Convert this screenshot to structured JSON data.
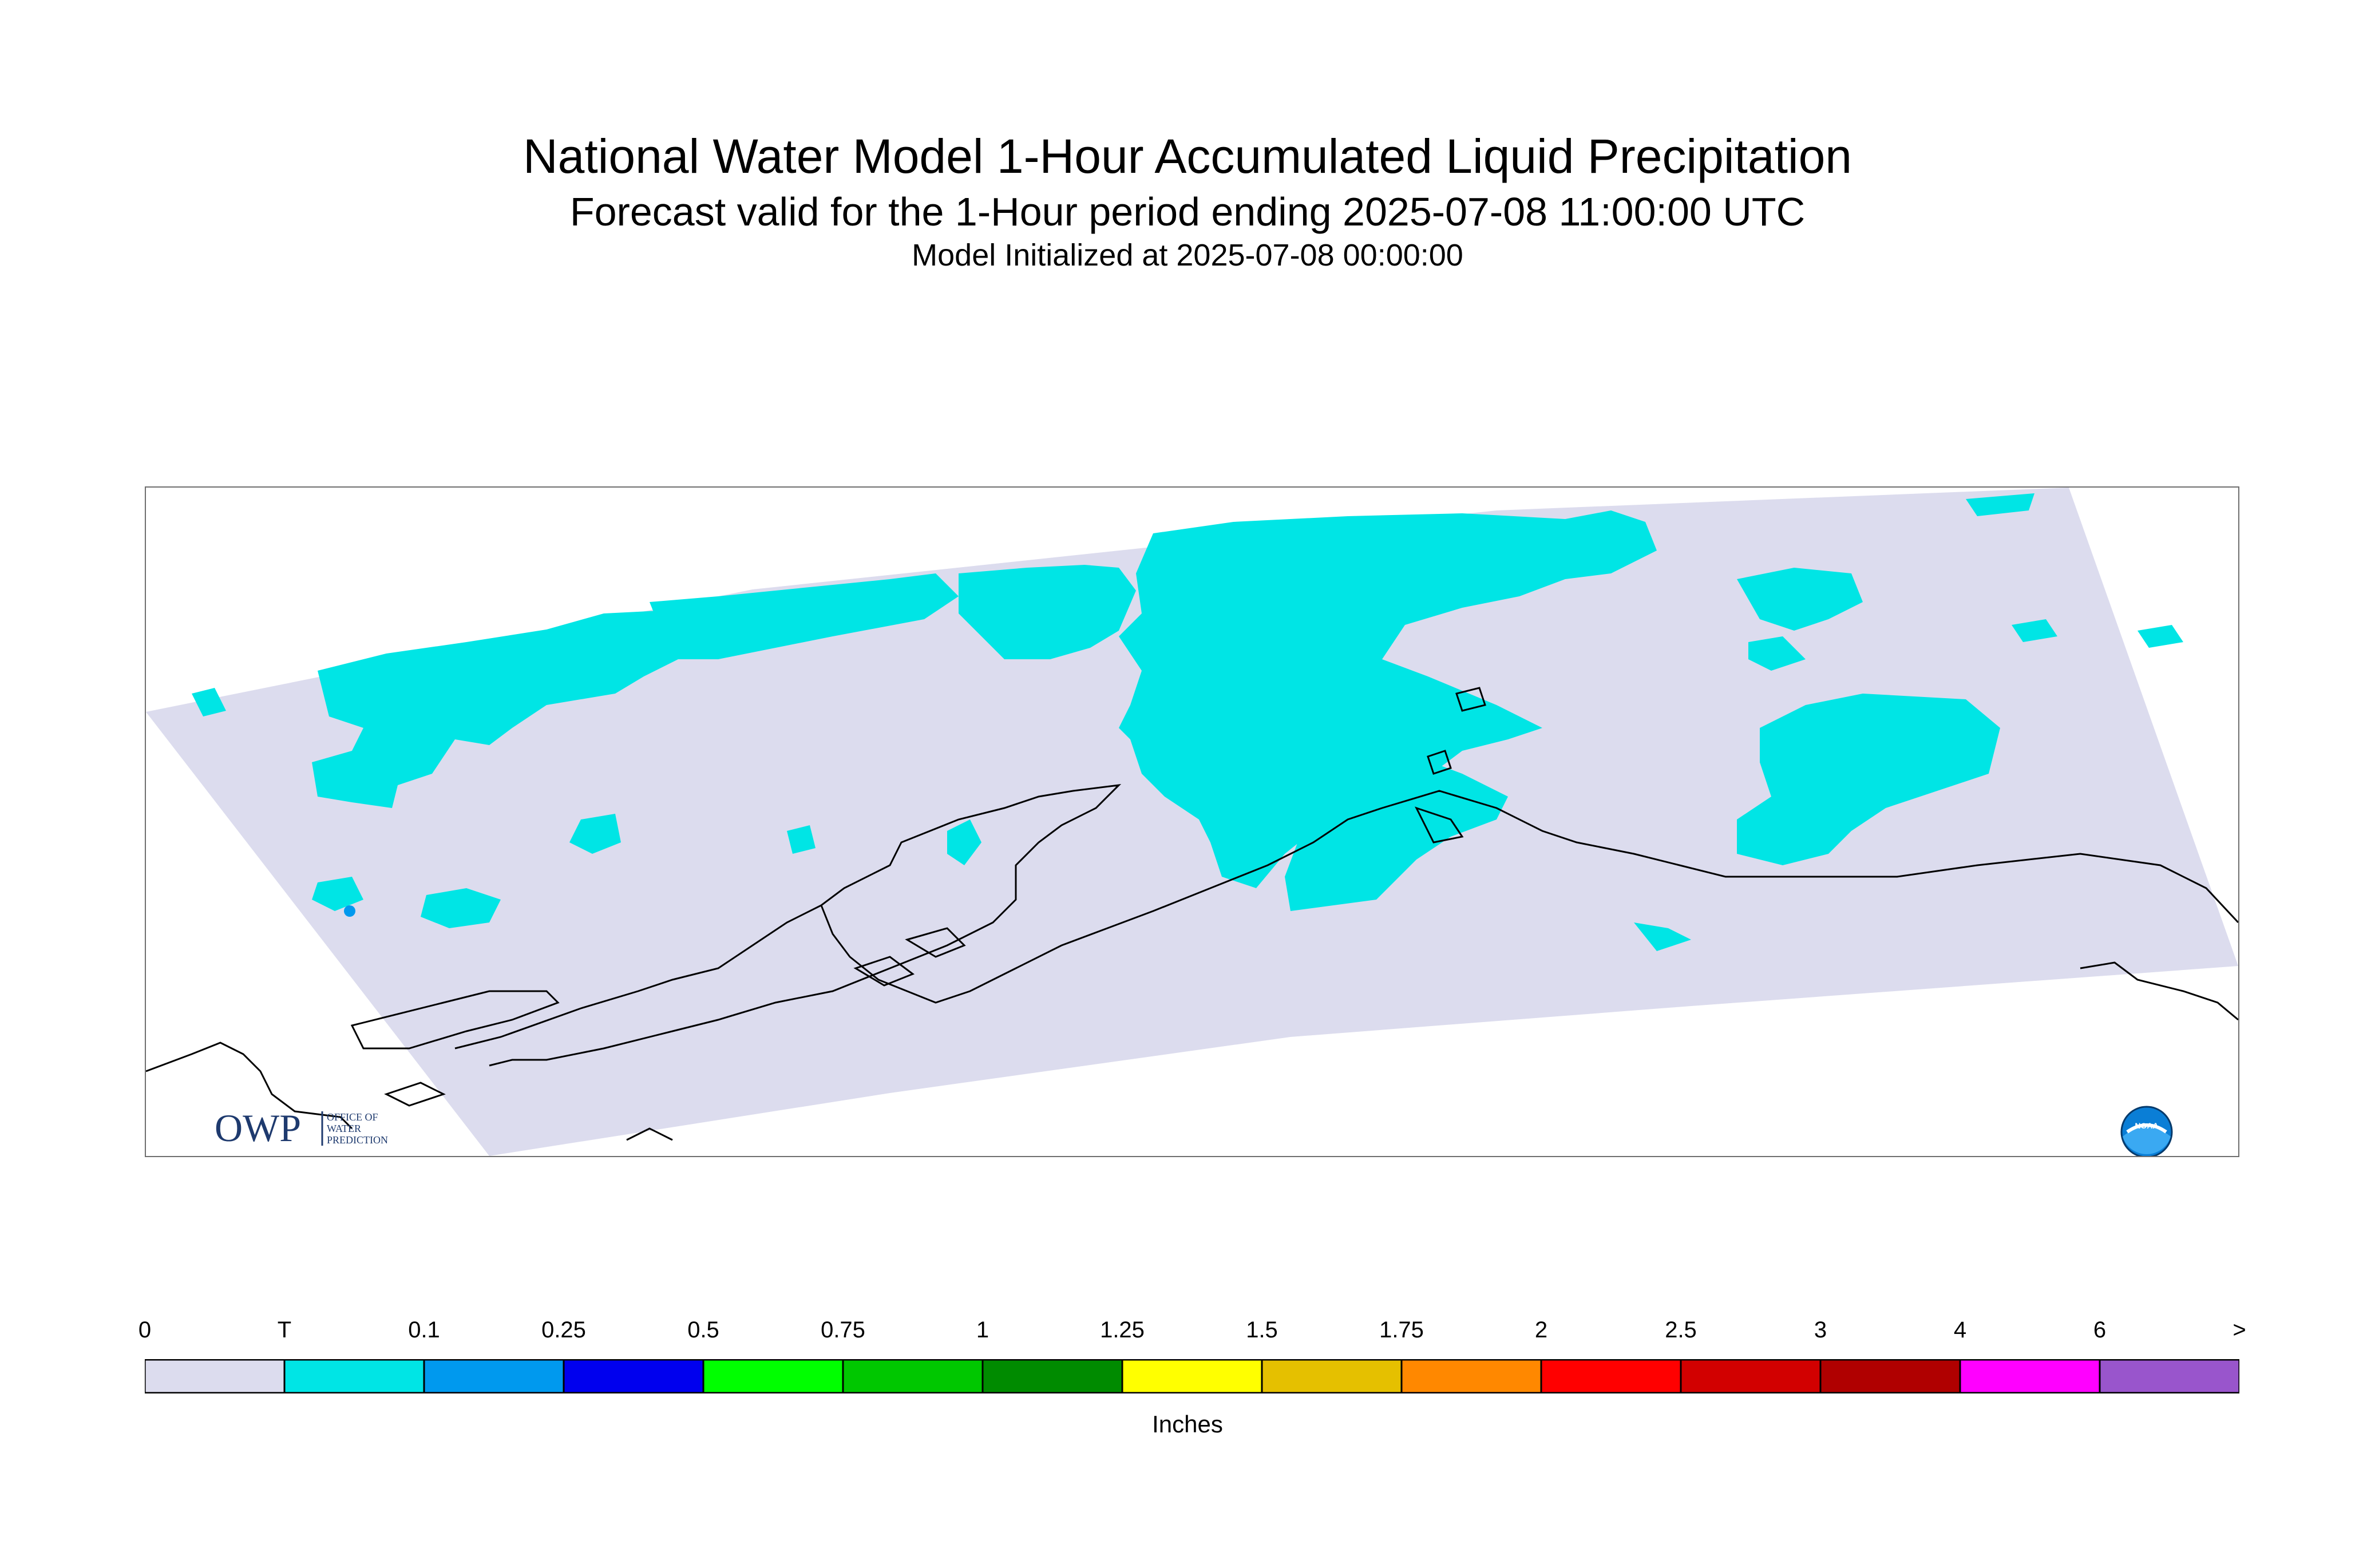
{
  "title": "National Water Model 1-Hour Accumulated Liquid Precipitation",
  "subtitle": "Forecast valid for the 1-Hour period ending 2025-07-08 11:00:00 UTC",
  "init_line": "Model Initialized at 2025-07-08 00:00:00",
  "logos": {
    "owp_text": "OWP",
    "owp_lines": [
      "OFFICE OF",
      "WATER",
      "PREDICTION"
    ],
    "noaa_text": "NOAA"
  },
  "colors": {
    "domain_fill": "#dcdcee",
    "trace": "#00e5e5",
    "coastline": "#000000",
    "frame": "#6e6e6e"
  },
  "legend": {
    "unit": "Inches",
    "labels": [
      "0",
      "T",
      "0.1",
      "0.25",
      "0.5",
      "0.75",
      "1",
      "1.25",
      "1.5",
      "1.75",
      "2",
      "2.5",
      "3",
      "4",
      "6",
      ">"
    ],
    "bins": [
      {
        "from": "0",
        "to": "T",
        "color": "#dcdcee"
      },
      {
        "from": "T",
        "to": "0.1",
        "color": "#00e5e5"
      },
      {
        "from": "0.1",
        "to": "0.25",
        "color": "#0099ee"
      },
      {
        "from": "0.25",
        "to": "0.5",
        "color": "#0000ee"
      },
      {
        "from": "0.5",
        "to": "0.75",
        "color": "#00ff00"
      },
      {
        "from": "0.75",
        "to": "1",
        "color": "#00c700"
      },
      {
        "from": "1",
        "to": "1.25",
        "color": "#008b00"
      },
      {
        "from": "1.25",
        "to": "1.5",
        "color": "#ffff00"
      },
      {
        "from": "1.5",
        "to": "1.75",
        "color": "#e5c000"
      },
      {
        "from": "1.75",
        "to": "2",
        "color": "#ff8800"
      },
      {
        "from": "2",
        "to": "2.5",
        "color": "#ff0000"
      },
      {
        "from": "2.5",
        "to": "3",
        "color": "#d20000"
      },
      {
        "from": "3",
        "to": "4",
        "color": "#b00000"
      },
      {
        "from": "4",
        "to": "6",
        "color": "#ff00ff"
      },
      {
        "from": "6",
        "to": ">",
        "color": "#9955cc"
      }
    ]
  }
}
